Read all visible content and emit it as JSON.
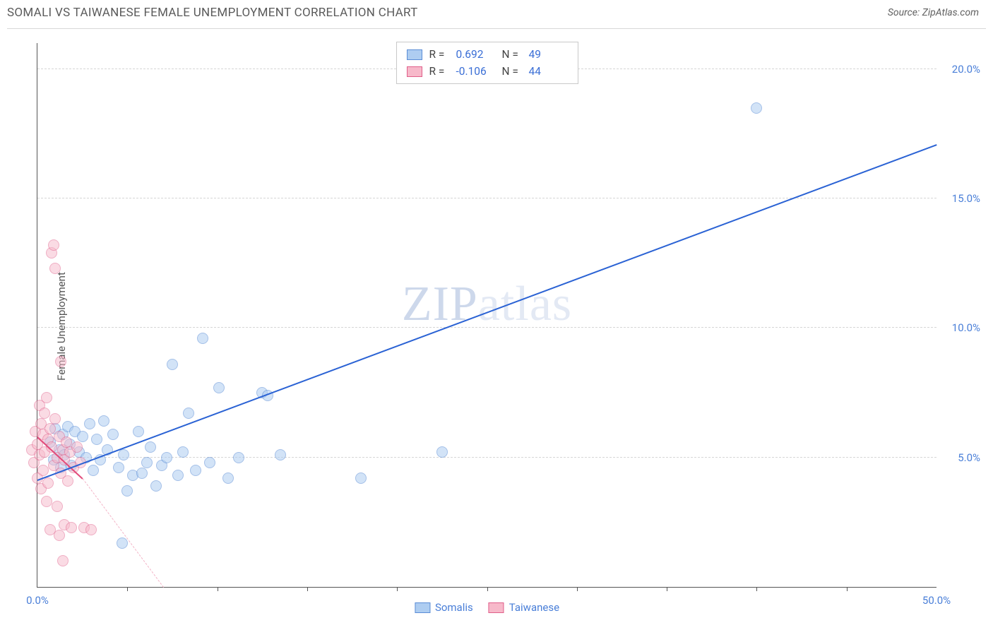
{
  "header": {
    "title": "SOMALI VS TAIWANESE FEMALE UNEMPLOYMENT CORRELATION CHART",
    "source_label": "Source: ZipAtlas.com"
  },
  "chart": {
    "type": "scatter",
    "ylabel": "Female Unemployment",
    "watermark": {
      "part1": "ZIP",
      "part2": "atlas"
    },
    "background_color": "#ffffff",
    "grid_color": "#d5d5d5",
    "axis_color": "#555555",
    "label_color": "#4a7fd8",
    "xlim": [
      0,
      50
    ],
    "ylim": [
      0,
      21
    ],
    "y_ticks": [
      {
        "v": 5,
        "label": "5.0%"
      },
      {
        "v": 10,
        "label": "10.0%"
      },
      {
        "v": 15,
        "label": "15.0%"
      },
      {
        "v": 20,
        "label": "20.0%"
      }
    ],
    "x_ticks": [
      {
        "v": 0,
        "label": "0.0%"
      },
      {
        "v": 50,
        "label": "50.0%"
      }
    ],
    "x_minor_ticks": [
      5,
      10,
      15,
      20,
      25,
      30,
      35,
      40,
      45
    ],
    "series": [
      {
        "name": "Somalis",
        "fill": "#aecdf1",
        "stroke": "#5b8dd6",
        "fill_opacity": 0.55,
        "point_radius": 8,
        "trend": {
          "x1": 0,
          "y1": 4.15,
          "x2": 50,
          "y2": 17.1,
          "color": "#2a62d4",
          "width": 2.2,
          "dashed": false
        },
        "r_value": "0.692",
        "n_value": "49",
        "points": [
          [
            0.7,
            5.6
          ],
          [
            0.9,
            4.9
          ],
          [
            1.0,
            6.1
          ],
          [
            1.2,
            5.3
          ],
          [
            1.3,
            4.6
          ],
          [
            1.4,
            5.9
          ],
          [
            1.5,
            5.1
          ],
          [
            1.7,
            6.2
          ],
          [
            1.8,
            5.5
          ],
          [
            1.9,
            4.7
          ],
          [
            2.1,
            6.0
          ],
          [
            2.3,
            5.2
          ],
          [
            2.5,
            5.8
          ],
          [
            2.7,
            5.0
          ],
          [
            2.9,
            6.3
          ],
          [
            3.1,
            4.5
          ],
          [
            3.3,
            5.7
          ],
          [
            3.5,
            4.9
          ],
          [
            3.7,
            6.4
          ],
          [
            3.9,
            5.3
          ],
          [
            4.2,
            5.9
          ],
          [
            4.5,
            4.6
          ],
          [
            4.7,
            1.7
          ],
          [
            4.8,
            5.1
          ],
          [
            5.0,
            3.7
          ],
          [
            5.3,
            4.3
          ],
          [
            5.6,
            6.0
          ],
          [
            5.8,
            4.4
          ],
          [
            6.1,
            4.8
          ],
          [
            6.3,
            5.4
          ],
          [
            6.6,
            3.9
          ],
          [
            6.9,
            4.7
          ],
          [
            7.2,
            5.0
          ],
          [
            7.5,
            8.6
          ],
          [
            7.8,
            4.3
          ],
          [
            8.1,
            5.2
          ],
          [
            8.4,
            6.7
          ],
          [
            8.8,
            4.5
          ],
          [
            9.2,
            9.6
          ],
          [
            9.6,
            4.8
          ],
          [
            10.1,
            7.7
          ],
          [
            10.6,
            4.2
          ],
          [
            11.2,
            5.0
          ],
          [
            12.5,
            7.5
          ],
          [
            12.8,
            7.4
          ],
          [
            13.5,
            5.1
          ],
          [
            18.0,
            4.2
          ],
          [
            22.5,
            5.2
          ],
          [
            40.0,
            18.5
          ]
        ]
      },
      {
        "name": "Taiwanese",
        "fill": "#f7b9ca",
        "stroke": "#e05f8a",
        "fill_opacity": 0.5,
        "point_radius": 8,
        "trend_solid": {
          "x1": 0,
          "y1": 5.8,
          "x2": 2.5,
          "y2": 4.2,
          "color": "#e24a7a",
          "width": 2,
          "dashed": false
        },
        "trend_dash": {
          "x1": 2.5,
          "y1": 4.2,
          "x2": 7.0,
          "y2": 0.0,
          "color": "#f3b4c7",
          "width": 1.5,
          "dashed": true
        },
        "r_value": "-0.106",
        "n_value": "44",
        "points": [
          [
            -0.3,
            5.3
          ],
          [
            -0.2,
            4.8
          ],
          [
            -0.1,
            6.0
          ],
          [
            0.0,
            5.5
          ],
          [
            0.0,
            4.2
          ],
          [
            0.1,
            7.0
          ],
          [
            0.1,
            5.1
          ],
          [
            0.2,
            6.3
          ],
          [
            0.2,
            3.8
          ],
          [
            0.3,
            5.9
          ],
          [
            0.3,
            4.5
          ],
          [
            0.4,
            6.7
          ],
          [
            0.4,
            5.2
          ],
          [
            0.5,
            7.3
          ],
          [
            0.5,
            3.3
          ],
          [
            0.6,
            5.7
          ],
          [
            0.6,
            4.0
          ],
          [
            0.7,
            6.1
          ],
          [
            0.7,
            2.2
          ],
          [
            0.8,
            5.4
          ],
          [
            0.8,
            12.9
          ],
          [
            0.9,
            13.2
          ],
          [
            0.9,
            4.7
          ],
          [
            1.0,
            6.5
          ],
          [
            1.0,
            12.3
          ],
          [
            1.1,
            5.0
          ],
          [
            1.1,
            3.1
          ],
          [
            1.2,
            5.8
          ],
          [
            1.2,
            2.0
          ],
          [
            1.3,
            4.4
          ],
          [
            1.3,
            8.7
          ],
          [
            1.4,
            5.3
          ],
          [
            1.4,
            1.0
          ],
          [
            1.5,
            4.9
          ],
          [
            1.5,
            2.4
          ],
          [
            1.6,
            5.6
          ],
          [
            1.7,
            4.1
          ],
          [
            1.8,
            5.2
          ],
          [
            1.9,
            2.3
          ],
          [
            2.0,
            4.6
          ],
          [
            2.2,
            5.4
          ],
          [
            2.4,
            4.8
          ],
          [
            2.6,
            2.3
          ],
          [
            3.0,
            2.2
          ]
        ]
      }
    ],
    "legend_top": {
      "rows": [
        {
          "swatch_fill": "#aecdf1",
          "swatch_stroke": "#5b8dd6",
          "R_label": "R =",
          "R_val": "0.692",
          "N_label": "N =",
          "N_val": "49"
        },
        {
          "swatch_fill": "#f7b9ca",
          "swatch_stroke": "#e05f8a",
          "R_label": "R =",
          "R_val": "-0.106",
          "N_label": "N =",
          "N_val": "44"
        }
      ]
    },
    "legend_bottom": [
      {
        "swatch_fill": "#aecdf1",
        "swatch_stroke": "#5b8dd6",
        "label": "Somalis"
      },
      {
        "swatch_fill": "#f7b9ca",
        "swatch_stroke": "#e05f8a",
        "label": "Taiwanese"
      }
    ]
  }
}
